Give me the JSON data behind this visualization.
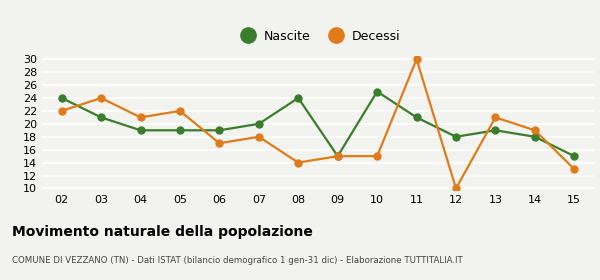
{
  "years": [
    "02",
    "03",
    "04",
    "05",
    "06",
    "07",
    "08",
    "09",
    "10",
    "11",
    "12",
    "13",
    "14",
    "15"
  ],
  "nascite": [
    24,
    21,
    19,
    19,
    19,
    20,
    24,
    15,
    25,
    21,
    18,
    19,
    18,
    15
  ],
  "decessi": [
    22,
    24,
    21,
    22,
    17,
    18,
    14,
    15,
    15,
    30,
    10,
    21,
    19,
    13
  ],
  "nascite_color": "#3a7d2c",
  "decessi_color": "#e07b1a",
  "background_color": "#f2f2ee",
  "grid_color": "#ffffff",
  "ylim": [
    10,
    30
  ],
  "yticks": [
    10,
    12,
    14,
    16,
    18,
    20,
    22,
    24,
    26,
    28,
    30
  ],
  "title": "Movimento naturale della popolazione",
  "subtitle": "COMUNE DI VEZZANO (TN) - Dati ISTAT (bilancio demografico 1 gen-31 dic) - Elaborazione TUTTITALIA.IT",
  "legend_nascite": "Nascite",
  "legend_decessi": "Decessi",
  "marker_size": 5,
  "linewidth": 1.6
}
